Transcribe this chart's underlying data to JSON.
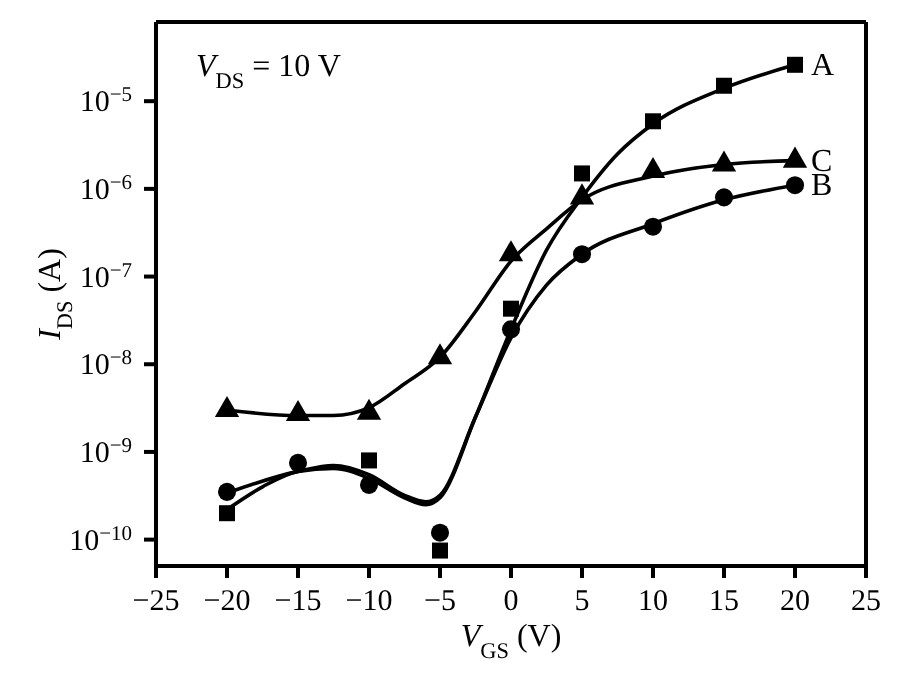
{
  "chart_data": {
    "type": "scatter",
    "xlabel": "V$_{GS}$ (V)",
    "ylabel": "I$_{DS}$ (A)",
    "annotations": [
      "V$_{DS}$ = 10 V"
    ],
    "log": "y",
    "xlim": [
      -25,
      25
    ],
    "xticks": [
      {
        "value": -25,
        "label": "−25"
      },
      {
        "value": -20,
        "label": "−20"
      },
      {
        "value": -15,
        "label": "−15"
      },
      {
        "value": -10,
        "label": "−10"
      },
      {
        "value": -5,
        "label": "−5"
      },
      0,
      5,
      10,
      15,
      20,
      25
    ],
    "ylim": [
      5e-11,
      8e-05
    ],
    "yticks": [
      {
        "value": 1e-10,
        "label": "10$^{−10}$"
      },
      {
        "value": 1e-09,
        "label": "10$^{−9}$"
      },
      {
        "value": 1e-08,
        "label": "10$^{−8}$"
      },
      {
        "value": 1e-07,
        "label": "10$^{−7}$"
      },
      {
        "value": 1e-06,
        "label": "10$^{−6}$"
      },
      {
        "value": 1e-05,
        "label": "10$^{−5}$"
      }
    ],
    "grid": false,
    "series": [
      {
        "name": "A",
        "marker": "square",
        "color": "#000000",
        "x": [
          -20,
          -10,
          -5,
          0,
          5,
          10,
          15,
          20
        ],
        "values": [
          2e-10,
          8e-10,
          7.5e-11,
          4.3e-08,
          1.5e-06,
          5.9e-06,
          1.5e-05,
          2.6e-05
        ]
      },
      {
        "name": "B",
        "marker": "circle",
        "color": "#000000",
        "x": [
          -20,
          -15,
          -10,
          -5,
          0,
          5,
          10,
          15,
          20
        ],
        "values": [
          3.5e-10,
          7.5e-10,
          4.2e-10,
          1.2e-10,
          2.5e-08,
          1.8e-07,
          3.7e-07,
          8e-07,
          1.1e-06
        ]
      },
      {
        "name": "C",
        "marker": "triangle",
        "color": "#000000",
        "x": [
          -20,
          -15,
          -10,
          -5,
          0,
          5,
          10,
          15,
          20
        ],
        "values": [
          3e-09,
          2.7e-09,
          2.8e-09,
          1.2e-08,
          1.8e-07,
          8e-07,
          1.6e-06,
          1.9e-06,
          2.1e-06
        ]
      },
      {
        "type": "line",
        "marker": "none",
        "line_style": "solid",
        "color": "#000000",
        "x": [
          -20,
          -17.5,
          -15,
          -12.5,
          -10,
          -7.5,
          -6,
          -5,
          -2.5,
          0,
          2.5,
          5,
          7.5,
          10,
          15,
          20
        ],
        "values": [
          2.2e-10,
          4e-10,
          6e-10,
          6.5e-10,
          5e-10,
          3e-10,
          2.5e-10,
          3e-10,
          2.5e-09,
          2.5e-08,
          2e-07,
          8e-07,
          2.5e-06,
          5.5e-06,
          1.4e-05,
          2.6e-05
        ]
      },
      {
        "type": "line",
        "marker": "none",
        "line_style": "solid",
        "color": "#000000",
        "x": [
          -20,
          -15,
          -12.5,
          -10,
          -7.5,
          -6,
          -5,
          -2.5,
          0,
          2.5,
          5,
          10,
          15,
          20
        ],
        "values": [
          3.4e-10,
          6e-10,
          7e-10,
          5.5e-10,
          3.2e-10,
          2.7e-10,
          3.2e-10,
          2.5e-09,
          2e-08,
          8e-08,
          1.8e-07,
          4e-07,
          7.5e-07,
          1.1e-06
        ]
      },
      {
        "type": "line",
        "marker": "none",
        "line_style": "solid",
        "color": "#000000",
        "x": [
          -20,
          -15,
          -12.5,
          -10,
          -7.5,
          -5,
          -2.5,
          0,
          2.5,
          5,
          10,
          15,
          20
        ],
        "values": [
          3e-09,
          2.6e-09,
          2.6e-09,
          3.2e-09,
          6e-09,
          1.2e-08,
          4e-08,
          1.5e-07,
          3.5e-07,
          7.5e-07,
          1.4e-06,
          1.9e-06,
          2.1e-06
        ]
      }
    ]
  }
}
